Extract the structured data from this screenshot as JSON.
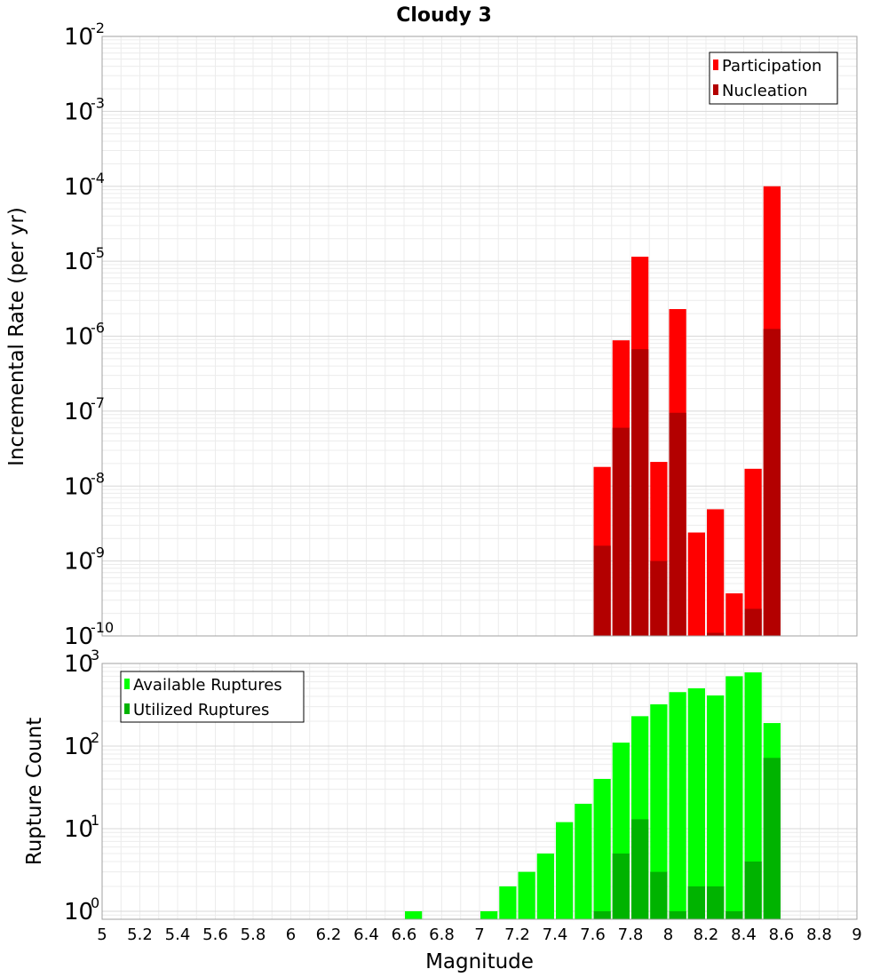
{
  "chart_data": [
    {
      "type": "bar",
      "title": "Cloudy 3",
      "xlabel": "",
      "ylabel": "Incremental Rate (per yr)",
      "y_scale": "log",
      "ylim": [
        1e-10,
        0.01
      ],
      "xlim": [
        5,
        9
      ],
      "y_tick_labels": [
        {
          "base": "10",
          "exp": "-2"
        },
        {
          "base": "10",
          "exp": "-3"
        },
        {
          "base": "10",
          "exp": "-4"
        },
        {
          "base": "10",
          "exp": "-5"
        },
        {
          "base": "10",
          "exp": "-6"
        },
        {
          "base": "10",
          "exp": "-7"
        },
        {
          "base": "10",
          "exp": "-8"
        },
        {
          "base": "10",
          "exp": "-9"
        },
        {
          "base": "10",
          "exp": "-10"
        }
      ],
      "legend_position": "top-right",
      "grid": true,
      "x": [
        7.65,
        7.75,
        7.85,
        7.95,
        8.05,
        8.15,
        8.25,
        8.35,
        8.45,
        8.55
      ],
      "series": [
        {
          "name": "Participation",
          "color": "#ff0000",
          "values": [
            1.8e-08,
            8.8e-07,
            1.15e-05,
            2.1e-08,
            2.3e-06,
            2.4e-09,
            4.9e-09,
            3.7e-10,
            1.7e-08,
            0.0001
          ]
        },
        {
          "name": "Nucleation",
          "color": "#b30000",
          "values": [
            1.6e-09,
            6e-08,
            6.7e-07,
            1e-09,
            9.5e-08,
            0,
            1.1e-10,
            0,
            2.3e-10,
            1.25e-06
          ]
        }
      ]
    },
    {
      "type": "bar",
      "title": "",
      "xlabel": "Magnitude",
      "ylabel": "Rupture Count",
      "y_scale": "log",
      "ylim": [
        0.8,
        1000
      ],
      "xlim": [
        5,
        9
      ],
      "y_tick_labels": [
        {
          "base": "10",
          "exp": "3"
        },
        {
          "base": "10",
          "exp": "2"
        },
        {
          "base": "10",
          "exp": "1"
        },
        {
          "base": "10",
          "exp": "0"
        }
      ],
      "x_tick_labels": [
        "5",
        "5.2",
        "5.4",
        "5.6",
        "5.8",
        "6",
        "6.2",
        "6.4",
        "6.6",
        "6.8",
        "7",
        "7.2",
        "7.4",
        "7.6",
        "7.8",
        "8",
        "8.2",
        "8.4",
        "8.6",
        "8.8",
        "9"
      ],
      "legend_position": "top-left",
      "grid": true,
      "x": [
        6.65,
        7.05,
        7.15,
        7.25,
        7.35,
        7.45,
        7.55,
        7.65,
        7.75,
        7.85,
        7.95,
        8.05,
        8.15,
        8.25,
        8.35,
        8.45,
        8.55
      ],
      "series": [
        {
          "name": "Available Ruptures",
          "color": "#00ff00",
          "values": [
            1,
            1,
            2,
            3,
            5,
            12,
            20,
            40,
            110,
            230,
            320,
            450,
            500,
            410,
            700,
            780,
            190
          ]
        },
        {
          "name": "Utilized Ruptures",
          "color": "#00b300",
          "values": [
            0,
            0,
            0,
            0,
            0,
            0,
            0,
            1,
            5,
            13,
            3,
            1,
            2,
            2,
            1,
            4,
            72
          ]
        }
      ]
    }
  ]
}
